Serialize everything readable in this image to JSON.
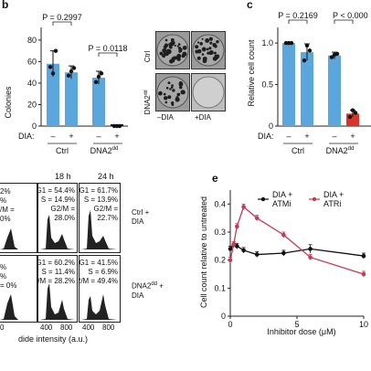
{
  "panels": {
    "b": {
      "letter": "b",
      "ylabel": "Colonies",
      "yticks": [
        "0",
        "20",
        "40",
        "60",
        "80"
      ],
      "pvals": [
        "P = 0.2997",
        "P = 0.0118"
      ],
      "dia_label": "DIA:",
      "signs": [
        "–",
        "+",
        "–",
        "+"
      ],
      "groups": [
        "Ctrl",
        "DNA2"
      ],
      "group_sup": "dd",
      "plates": {
        "row_labels": [
          "Ctrl",
          "DNA2"
        ],
        "row_sup": "dd",
        "col_labels": [
          "–DIA",
          "+DIA"
        ]
      }
    },
    "c": {
      "letter": "c",
      "ylabel": "Relative cell count",
      "yticks": [
        "0",
        "0.5",
        "1.0"
      ],
      "pvals": [
        "P = 0.2169",
        "P < 0.000"
      ],
      "dia_label": "DIA:",
      "signs": [
        "–",
        "+",
        "–",
        "+"
      ],
      "groups": [
        "Ctrl",
        "DNA2"
      ],
      "group_sup": "dd"
    },
    "d": {
      "timepoints": [
        "18 h",
        "24 h"
      ],
      "row_labels": [
        "Ctrl +\nDIA",
        "DNA2"
      ],
      "row2_sup": "dd",
      "row2_suffix": " +\nDIA",
      "cells": [
        [
          "G1 = 54.4%\nS = 14.9%\nG2/M =\n28.0%",
          "G1 = 61.7%\nS = 13.9%\nG2/M =\n22.7%"
        ],
        [
          "G1 = 60.2%\nS = 11.4%\nG2/M = 28.2%",
          "G1 = 41.5%\nS = 6.9%\nG2/M = 49.4%"
        ]
      ],
      "left_partial": [
        "2%",
        "%",
        "/M =",
        "0%",
        "%",
        "%",
        "= 0%"
      ],
      "xticks": [
        "400",
        "800",
        "400",
        "800"
      ],
      "left_tick": "0",
      "xlabel": "dide intensity (a.u.)"
    },
    "e": {
      "letter": "e",
      "ylabel": "Cell count relative to untreated",
      "xlabel": "Inhibitor dose (μM)",
      "yticks": [
        "0",
        "0.1",
        "0.2",
        "0.3",
        "0.4"
      ],
      "xticks": [
        "0",
        "5",
        "10"
      ],
      "legend": [
        "DIA +\nATMi",
        "DIA +\nATRi"
      ]
    }
  },
  "colors": {
    "bar": "#5aa6dd",
    "bar_red": "#d8342c",
    "atmi": "#111111",
    "atri": "#c43a5a"
  },
  "chart_data": [
    {
      "panel": "b",
      "type": "bar",
      "categories": [
        "Ctrl –DIA",
        "Ctrl +DIA",
        "DNA2dd –DIA",
        "DNA2dd +DIA"
      ],
      "values": [
        58,
        50,
        45,
        0
      ],
      "errors": [
        12,
        6,
        6,
        0
      ],
      "points": [
        [
          55,
          70,
          49
        ],
        [
          47,
          54,
          51
        ],
        [
          41,
          49,
          46
        ],
        [
          0,
          0,
          0
        ]
      ],
      "ylabel": "Colonies",
      "ylim": [
        0,
        85
      ]
    },
    {
      "panel": "c",
      "type": "bar",
      "categories": [
        "Ctrl –DIA",
        "Ctrl +DIA",
        "DNA2dd –DIA",
        "DNA2dd +DIA"
      ],
      "values": [
        1.0,
        0.89,
        0.85,
        0.15
      ],
      "errors": [
        0.01,
        0.1,
        0.04,
        0.04
      ],
      "points": [
        [
          1.0,
          1.0,
          1.0
        ],
        [
          0.79,
          0.91,
          0.97
        ],
        [
          0.83,
          0.87,
          0.86
        ],
        [
          0.11,
          0.16,
          0.19
        ]
      ],
      "ylabel": "Relative cell count",
      "ylim": [
        0,
        1.1
      ]
    },
    {
      "panel": "e",
      "type": "line",
      "x": [
        0,
        0.25,
        0.5,
        1,
        2,
        4,
        6,
        10
      ],
      "series": [
        {
          "name": "DIA + ATMi",
          "y": [
            0.24,
            0.255,
            0.25,
            0.235,
            0.22,
            0.225,
            0.24,
            0.215
          ],
          "err": [
            0.01,
            0.01,
            0.01,
            0.01,
            0.01,
            0.01,
            0.015,
            0.01
          ]
        },
        {
          "name": "DIA + ATRi",
          "y": [
            0.2,
            0.255,
            0.32,
            0.39,
            0.35,
            0.29,
            0.21,
            0.15
          ],
          "err": [
            0.01,
            0.01,
            0.01,
            0.01,
            0.01,
            0.01,
            0.01,
            0.01
          ]
        }
      ],
      "xlabel": "Inhibitor dose (μM)",
      "ylabel": "Cell count relative to untreated",
      "xlim": [
        0,
        10
      ],
      "ylim": [
        0,
        0.45
      ]
    }
  ]
}
